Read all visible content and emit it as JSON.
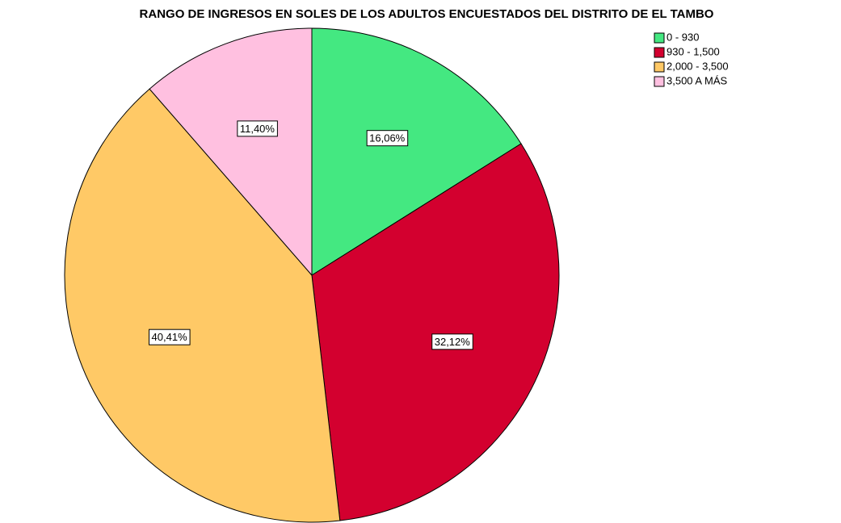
{
  "chart_data": {
    "type": "pie",
    "title": "RANGO DE INGRESOS EN SOLES DE LOS ADULTOS ENCUESTADOS DEL DISTRITO DE EL TAMBO",
    "categories": [
      "0 - 930",
      "930 - 1,500",
      "2,000 - 3,500",
      "3,500 A MÁS"
    ],
    "values": [
      16.06,
      32.12,
      40.41,
      11.4
    ],
    "value_labels": [
      "16,06%",
      "32,12%",
      "40,41%",
      "11,40%"
    ],
    "colors": [
      "#44e881",
      "#d3002f",
      "#ffc966",
      "#ffc0e0"
    ],
    "legend": "top-right"
  }
}
